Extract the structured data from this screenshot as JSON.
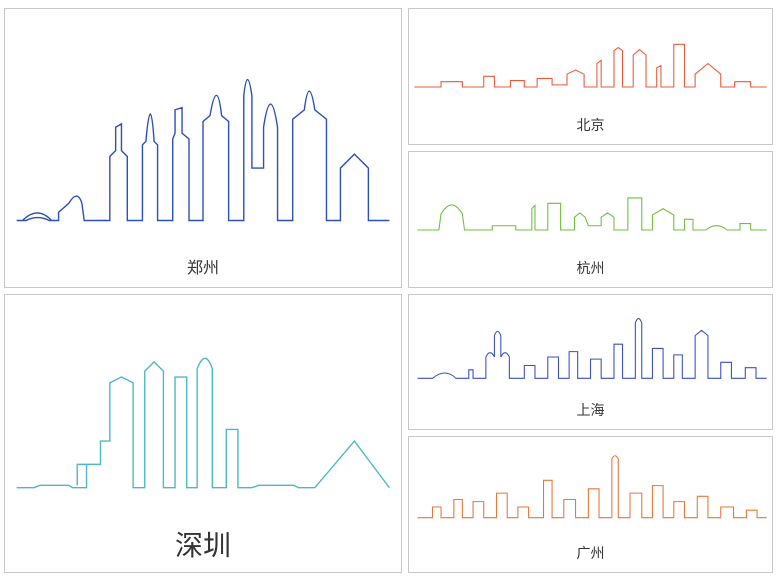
{
  "panels": {
    "zhengzhou": {
      "label": "郑州",
      "stroke": "#2c4fb8",
      "label_fontsize": 16
    },
    "shenzhen": {
      "label": "深圳",
      "stroke": "#4db8c4",
      "label_fontsize": 28
    },
    "beijing": {
      "label": "北京",
      "stroke": "#e85a3a",
      "label_fontsize": 14
    },
    "hangzhou": {
      "label": "杭州",
      "stroke": "#6fbf3f",
      "label_fontsize": 14
    },
    "shanghai": {
      "label": "上海",
      "stroke": "#3a4fc0",
      "label_fontsize": 14
    },
    "guangzhou": {
      "label": "广州",
      "stroke": "#e8763a",
      "label_fontsize": 14
    }
  },
  "layout": {
    "background": "#ffffff",
    "border_color": "#c8c8c8",
    "label_color": "#333333"
  },
  "skylines": {
    "zhengzhou": [
      "M10 175 L18 175 Q28 170 38 175 L46 175 L46 168 L55 160 Q62 148 66 160 L68 175 L90 175 L90 120 L95 115 L95 95 L100 92 L100 115 L105 120 L105 175 L118 175 L118 110 L121 107 Q125 60 128 107 L131 110 L131 175 L144 175 L144 105 L146 100 L146 80 L152 78 L152 100 L158 105 L158 175 L170 175 L170 90 L176 85 Q182 50 186 85 L192 90 L192 175 L205 175 L205 68 Q208 40 212 68 L212 130 L222 130 L222 95 Q228 55 234 95 L234 175 L247 175 L247 88 L257 80 Q261 48 266 80 L276 88 L276 175 L288 175 L288 130 L300 118 L312 130 L312 175 L330 175",
      "M15 175 Q28 162 40 175"
    ],
    "shenzhen": [
      "M10 150 L25 150 L30 148 L55 148 L58 150 L70 150 L70 130 L82 130 L82 110 L90 110 L90 60 L100 55 L110 60 L110 150 L120 150 L120 50 L128 42 L136 50 L136 150 L146 150 L146 55 L156 55 L156 150 L165 150 L165 48 Q172 30 178 48 L178 150 L190 150 L190 100 L200 100 L200 150 L212 150 L218 148 L248 148 L252 150 L266 150 L300 110 L330 150",
      "M70 130 L62 130 L62 148"
    ],
    "beijing": [
      "M5 60 L30 60 L30 55 L50 55 L50 60 L70 60 L70 50 L80 50 L80 60 L95 60 L95 54 L108 54 L108 60 L120 60 L120 52 L134 52 L134 58 L148 58 L148 48 L156 44 L164 48 L164 60 L176 60 L176 38 L180 35 L180 60 L192 60 L192 26 L196 23 L200 26 L200 60 L210 60 L210 30 L216 25 L222 30 L222 60 L232 60 L232 42 L236 40 L236 60 L248 60 L248 20 L258 20 L258 60 L268 60 L268 48 L280 38 L292 48 L292 60 L305 60 L305 55 L320 55 L320 60 L335 60"
    ],
    "hangzhou": [
      "M8 60 L28 60 L30 45 Q40 28 50 45 L52 60 L78 60 L78 56 L100 56 L100 60 L115 60 L115 40 L118 37 L118 60 L130 60 L130 35 L142 35 L142 60 L155 60 L155 48 L160 44 L165 48 L168 56 L180 56 L180 48 L186 44 L192 48 L192 60 L205 60 L205 30 L218 30 L218 60 L228 60 L228 46 L238 40 L248 46 L248 60 L258 60 L258 50 L266 50 L266 60 L278 60 Q288 52 298 60 L310 60 L310 54 L320 54 L320 60 L335 60"
    ],
    "shanghai": [
      "M8 70 L22 70 Q34 60 44 70 L56 70 L56 62 L60 62 L60 70 L72 70 L72 50 Q76 42 80 50 L80 30 Q83 22 86 30 L86 50 Q90 42 94 50 L94 70 L108 70 L108 58 L118 58 L118 70 L130 70 L130 50 L140 50 L140 70 L150 70 L150 45 L158 45 L158 70 L170 70 L170 52 L180 52 L180 70 L192 70 L192 38 L200 38 L200 70 L212 70 L212 18 Q215 10 218 18 L218 70 L228 70 L228 42 L238 42 L238 70 L248 70 L248 48 L256 48 L256 70 L268 70 L268 30 L274 25 L280 30 L280 70 L292 70 L292 55 L302 55 L302 70 L315 70 L315 60 L325 60 L325 70 L335 70"
    ],
    "guangzhou": [
      "M8 65 L22 65 L22 55 L30 55 L30 65 L42 65 L42 48 L50 48 L50 65 L60 65 L60 50 L70 50 L70 65 L82 65 L82 42 L92 42 L92 65 L102 65 L102 55 L112 55 L112 65 L126 65 L126 30 L134 30 L134 65 L145 65 L145 48 L156 48 L156 65 L168 65 L168 38 L178 38 L178 65 L190 65 L190 10 Q193 4 196 10 L196 65 L207 65 L207 42 L218 42 L218 65 L228 65 L228 35 L238 35 L238 65 L248 65 L248 50 L258 50 L258 65 L270 65 L270 45 L280 45 L280 65 L292 65 L292 55 L304 55 L304 65 L316 65 L316 58 L326 58 L326 65 L335 65"
    ]
  }
}
